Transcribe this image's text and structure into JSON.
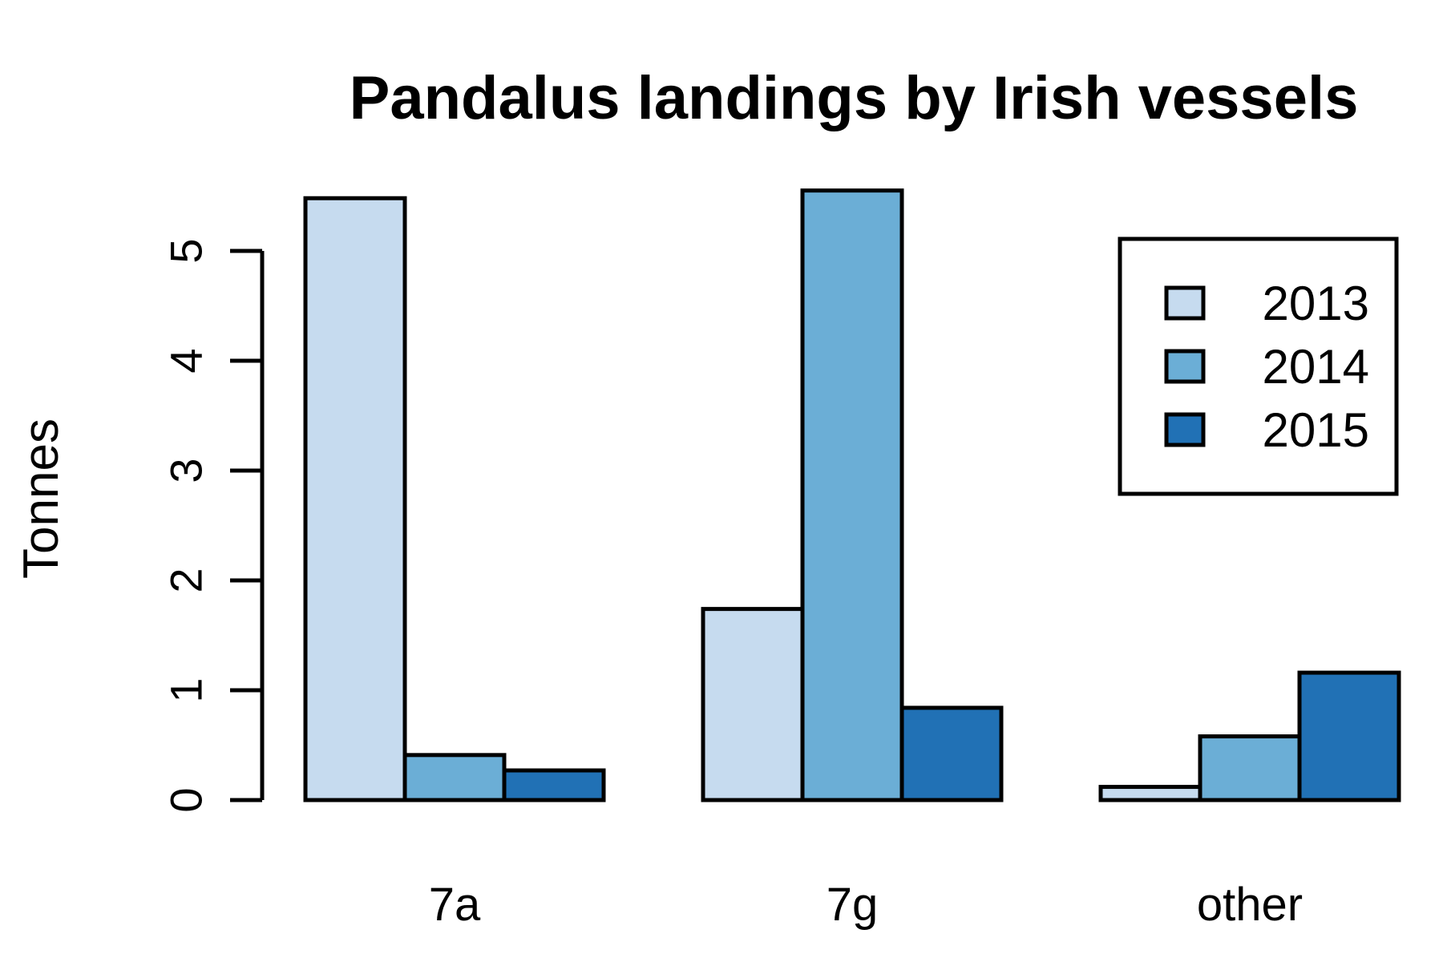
{
  "chart_data": {
    "type": "bar",
    "title": "Pandalus landings by Irish vessels",
    "xlabel": "",
    "ylabel": "Tonnes",
    "categories": [
      "7a",
      "7g",
      "other"
    ],
    "series": [
      {
        "name": "2013",
        "color": "#c6dbef",
        "values": [
          5.48,
          1.74,
          0.12
        ]
      },
      {
        "name": "2014",
        "color": "#6baed6",
        "values": [
          0.41,
          5.55,
          0.58
        ]
      },
      {
        "name": "2015",
        "color": "#2171b5",
        "values": [
          0.27,
          0.84,
          1.16
        ]
      }
    ],
    "yticks": [
      0,
      1,
      2,
      3,
      4,
      5
    ],
    "ylim": [
      0,
      5.55
    ],
    "grid": false,
    "legend_position": "top-right"
  }
}
